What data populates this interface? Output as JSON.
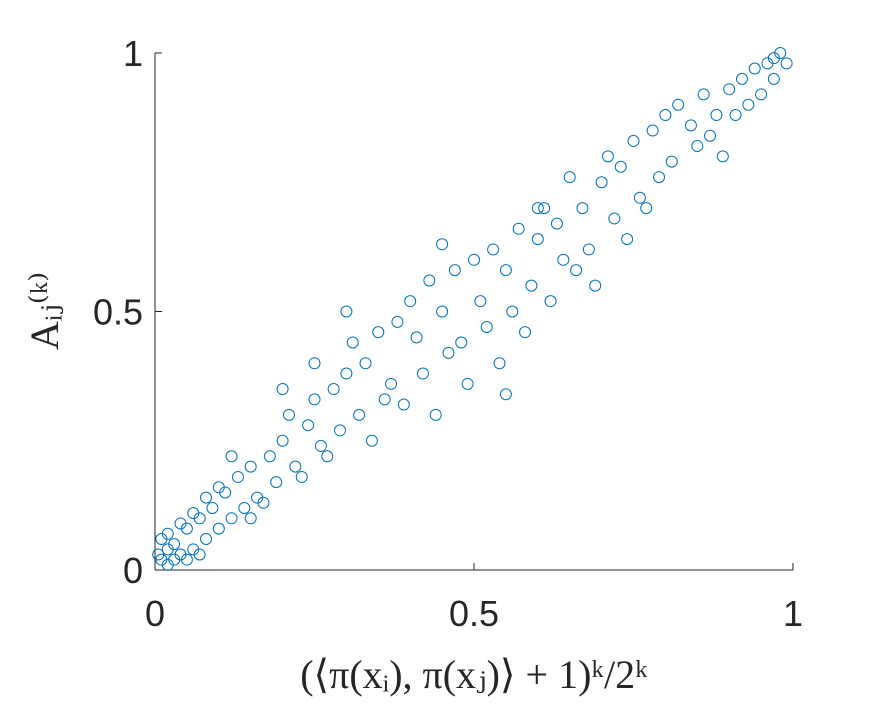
{
  "chart_data": {
    "type": "scatter",
    "xlabel": "(⟨π(xᵢ), π(xⱼ)⟩ + 1)ᵏ/2ᵏ",
    "ylabel": "Aᵢⱼ⁽ᵏ⁾",
    "color": "#0072bd",
    "xlim": [
      0,
      1
    ],
    "ylim": [
      0,
      1
    ],
    "xticks": [
      0,
      0.5,
      1
    ],
    "yticks": [
      0,
      0.5,
      1
    ],
    "x": [
      0.01,
      0.02,
      0.005,
      0.03,
      0.02,
      0.04,
      0.01,
      0.05,
      0.06,
      0.03,
      0.07,
      0.08,
      0.04,
      0.09,
      0.1,
      0.06,
      0.11,
      0.12,
      0.05,
      0.02,
      0.13,
      0.14,
      0.15,
      0.16,
      0.1,
      0.18,
      0.17,
      0.2,
      0.19,
      0.21,
      0.22,
      0.24,
      0.23,
      0.25,
      0.26,
      0.28,
      0.27,
      0.3,
      0.29,
      0.31,
      0.32,
      0.33,
      0.34,
      0.35,
      0.36,
      0.38,
      0.37,
      0.4,
      0.39,
      0.41,
      0.42,
      0.43,
      0.44,
      0.45,
      0.46,
      0.47,
      0.48,
      0.5,
      0.49,
      0.51,
      0.52,
      0.53,
      0.54,
      0.55,
      0.56,
      0.57,
      0.58,
      0.6,
      0.59,
      0.61,
      0.62,
      0.63,
      0.64,
      0.65,
      0.66,
      0.67,
      0.68,
      0.7,
      0.69,
      0.71,
      0.72,
      0.73,
      0.74,
      0.75,
      0.76,
      0.78,
      0.77,
      0.8,
      0.79,
      0.82,
      0.81,
      0.84,
      0.85,
      0.86,
      0.88,
      0.87,
      0.9,
      0.89,
      0.92,
      0.91,
      0.93,
      0.94,
      0.95,
      0.96,
      0.97,
      0.98,
      0.99,
      0.97,
      0.45,
      0.3,
      0.2,
      0.25,
      0.55,
      0.6,
      0.12,
      0.08,
      0.15,
      0.07
    ],
    "values": [
      0.02,
      0.01,
      0.03,
      0.05,
      0.04,
      0.03,
      0.06,
      0.08,
      0.04,
      0.02,
      0.1,
      0.06,
      0.09,
      0.12,
      0.08,
      0.11,
      0.15,
      0.1,
      0.02,
      0.07,
      0.18,
      0.12,
      0.2,
      0.14,
      0.16,
      0.22,
      0.13,
      0.25,
      0.17,
      0.3,
      0.2,
      0.28,
      0.18,
      0.33,
      0.24,
      0.35,
      0.22,
      0.38,
      0.27,
      0.44,
      0.3,
      0.4,
      0.25,
      0.46,
      0.33,
      0.48,
      0.36,
      0.52,
      0.32,
      0.45,
      0.38,
      0.56,
      0.3,
      0.5,
      0.42,
      0.58,
      0.44,
      0.6,
      0.36,
      0.52,
      0.47,
      0.62,
      0.4,
      0.58,
      0.5,
      0.66,
      0.46,
      0.64,
      0.55,
      0.7,
      0.52,
      0.67,
      0.6,
      0.76,
      0.58,
      0.7,
      0.62,
      0.75,
      0.55,
      0.8,
      0.68,
      0.78,
      0.64,
      0.83,
      0.72,
      0.85,
      0.7,
      0.88,
      0.76,
      0.9,
      0.79,
      0.86,
      0.82,
      0.92,
      0.88,
      0.84,
      0.93,
      0.8,
      0.95,
      0.88,
      0.9,
      0.97,
      0.92,
      0.98,
      0.95,
      1.0,
      0.98,
      0.99,
      0.63,
      0.5,
      0.35,
      0.4,
      0.34,
      0.7,
      0.22,
      0.14,
      0.1,
      0.03
    ]
  }
}
